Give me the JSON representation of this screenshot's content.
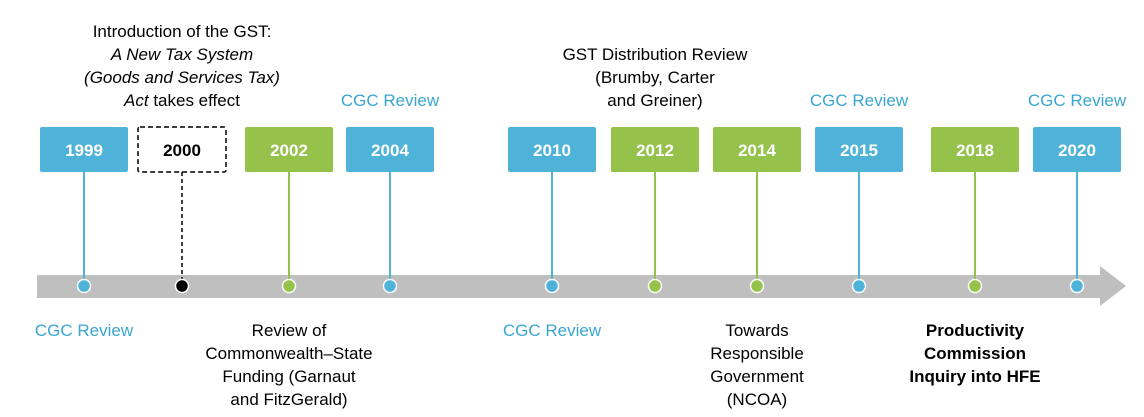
{
  "events": [
    {
      "year": "1999",
      "color": "#4fb3d9",
      "below": {
        "color": "#3aa6d0",
        "lines": [
          [
            {
              "text": "CGC Review"
            }
          ]
        ]
      }
    },
    {
      "year": "2000",
      "color": "#000000",
      "dashed": true,
      "above": {
        "color": "#000000",
        "lines": [
          [
            {
              "text": "Introduction of the GST:"
            }
          ],
          [
            {
              "text": "A New Tax System",
              "italic": true
            }
          ],
          [
            {
              "text": "(Goods and Services Tax)",
              "italic": true
            }
          ],
          [
            {
              "text": "Act",
              "italic": true
            },
            {
              "text": " takes effect"
            }
          ]
        ]
      }
    },
    {
      "year": "2002",
      "color": "#94c24a",
      "below": {
        "color": "#000000",
        "lines": [
          [
            {
              "text": "Review of"
            }
          ],
          [
            {
              "text": "Commonwealth–State"
            }
          ],
          [
            {
              "text": "Funding (Garnaut"
            }
          ],
          [
            {
              "text": "and FitzGerald)"
            }
          ]
        ]
      }
    },
    {
      "year": "2004",
      "color": "#4fb3d9",
      "above": {
        "color": "#3aa6d0",
        "lines": [
          [
            {
              "text": "CGC Review"
            }
          ]
        ]
      }
    },
    {
      "year": "2010",
      "color": "#4fb3d9",
      "below": {
        "color": "#3aa6d0",
        "lines": [
          [
            {
              "text": "CGC Review"
            }
          ]
        ]
      }
    },
    {
      "year": "2012",
      "color": "#94c24a",
      "above": {
        "color": "#000000",
        "lines": [
          [
            {
              "text": "GST Distribution Review"
            }
          ],
          [
            {
              "text": "(Brumby, Carter"
            }
          ],
          [
            {
              "text": "and Greiner)"
            }
          ]
        ]
      }
    },
    {
      "year": "2014",
      "color": "#94c24a",
      "below": {
        "color": "#000000",
        "lines": [
          [
            {
              "text": "Towards"
            }
          ],
          [
            {
              "text": "Responsible"
            }
          ],
          [
            {
              "text": "Government"
            }
          ],
          [
            {
              "text": "(NCOA)"
            }
          ]
        ]
      }
    },
    {
      "year": "2015",
      "color": "#4fb3d9",
      "above": {
        "color": "#3aa6d0",
        "lines": [
          [
            {
              "text": "CGC Review"
            }
          ]
        ]
      }
    },
    {
      "year": "2018",
      "color": "#94c24a",
      "below": {
        "color": "#000000",
        "bold": true,
        "lines": [
          [
            {
              "text": "Productivity"
            }
          ],
          [
            {
              "text": "Commission"
            }
          ],
          [
            {
              "text": "Inquiry into HFE"
            }
          ]
        ]
      }
    },
    {
      "year": "2020",
      "color": "#4fb3d9",
      "above": {
        "color": "#3aa6d0",
        "lines": [
          [
            {
              "text": "CGC Review"
            }
          ]
        ]
      }
    }
  ]
}
